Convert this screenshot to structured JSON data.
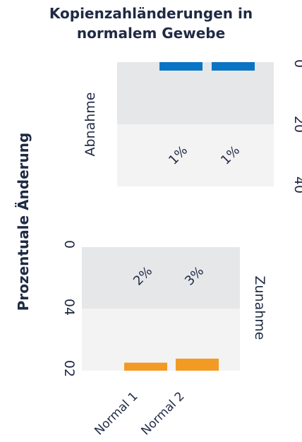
{
  "chart_data": {
    "type": "bar",
    "title": "Kopienzahländerungen in normalem Gewebe",
    "ylabel": "Prozentuale Änderung",
    "categories": [
      "Normal 1",
      "Normal 2"
    ],
    "grid": false,
    "panels": [
      {
        "name": "Abnahme",
        "ylim": [
          0,
          40
        ],
        "ticks": [
          "0",
          "20",
          "40"
        ],
        "values": [
          1,
          1
        ],
        "labels": [
          "1%",
          "1%"
        ],
        "color": "#0a74c4",
        "band_colors": [
          "#e6e7e9",
          "#f3f3f3"
        ]
      },
      {
        "name": "Zunahme",
        "ylim": [
          0,
          40
        ],
        "ticks": [
          "0",
          "04",
          "02"
        ],
        "values": [
          2,
          3
        ],
        "labels": [
          "2%",
          "3%"
        ],
        "color": "#f39a24",
        "band_colors": [
          "#e6e7e9",
          "#f3f3f3"
        ]
      }
    ]
  }
}
